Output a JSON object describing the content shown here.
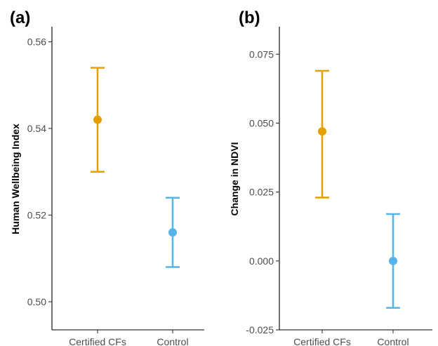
{
  "chart_data": [
    {
      "type": "scatter",
      "panel_label": "(a)",
      "title": "",
      "xlabel": "",
      "ylabel": "Human Wellbeing Index",
      "categories": [
        "Certified CFs",
        "Control"
      ],
      "yticks": [
        "0.50",
        "0.52",
        "0.54",
        "0.56"
      ],
      "ylim": [
        0.4935,
        0.5635
      ],
      "points": [
        {
          "category": "Certified CFs",
          "mean": 0.542,
          "lower": 0.53,
          "upper": 0.554,
          "color": "#E69F00"
        },
        {
          "category": "Control",
          "mean": 0.516,
          "lower": 0.508,
          "upper": 0.524,
          "color": "#56B4E9"
        }
      ],
      "grid": false,
      "legend": "none"
    },
    {
      "type": "scatter",
      "panel_label": "(b)",
      "title": "",
      "xlabel": "",
      "ylabel": "Change in NDVI",
      "categories": [
        "Certified CFs",
        "Control"
      ],
      "yticks": [
        "-0.025",
        "0.000",
        "0.025",
        "0.050",
        "0.075"
      ],
      "ylim": [
        -0.025,
        0.085
      ],
      "points": [
        {
          "category": "Certified CFs",
          "mean": 0.047,
          "lower": 0.023,
          "upper": 0.069,
          "color": "#E69F00"
        },
        {
          "category": "Control",
          "mean": 0.0,
          "lower": -0.017,
          "upper": 0.017,
          "color": "#56B4E9"
        }
      ],
      "grid": false,
      "legend": "none"
    }
  ]
}
